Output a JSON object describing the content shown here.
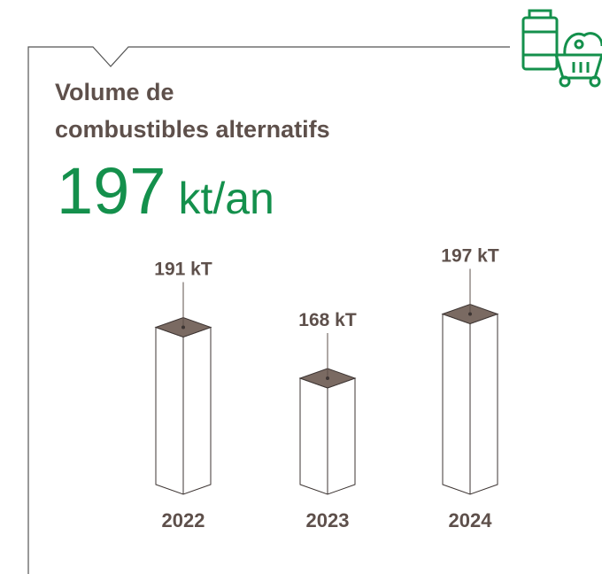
{
  "chart_data": {
    "type": "bar3d",
    "title_lines": [
      "Volume de",
      "combustibles alternatifs"
    ],
    "headline_value": 197,
    "headline_unit": "kt/an",
    "categories": [
      "2022",
      "2023",
      "2024"
    ],
    "values": [
      191,
      168,
      197
    ],
    "value_labels": [
      "191 kT",
      "168 kT",
      "197 kT"
    ],
    "ylim": [
      120,
      200
    ],
    "color": "#7a6a62"
  }
}
